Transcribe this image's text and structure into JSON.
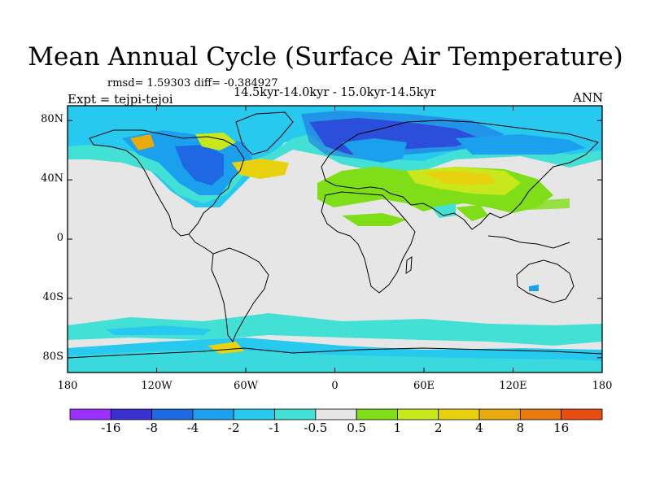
{
  "title": "Mean Annual Cycle (Surface Air Temperature)",
  "stats": "rmsd= 1.59303 diff= -0.384927",
  "subtitle": "14.5kyr-14.0kyr - 15.0kyr-14.5kyr",
  "experiment": "Expt = tejpi-tejoi",
  "season": "ANN",
  "map": {
    "projection": "cylindrical-equidistant",
    "lon_range": [
      -180,
      180
    ],
    "lat_range": [
      -90,
      90
    ],
    "background_color": "#e6e6e6",
    "coastline_color": "#000000"
  },
  "lat_ticks": [
    {
      "value": 80,
      "label": "80N"
    },
    {
      "value": 40,
      "label": "40N"
    },
    {
      "value": 0,
      "label": "0"
    },
    {
      "value": -40,
      "label": "40S"
    },
    {
      "value": -80,
      "label": "80S"
    }
  ],
  "lon_ticks": [
    {
      "value": -180,
      "label": "180"
    },
    {
      "value": -120,
      "label": "120W"
    },
    {
      "value": -60,
      "label": "60W"
    },
    {
      "value": 0,
      "label": "0"
    },
    {
      "value": 60,
      "label": "60E"
    },
    {
      "value": 120,
      "label": "120E"
    },
    {
      "value": 180,
      "label": "180"
    }
  ],
  "colorbar": {
    "colors": [
      "#9b30ff",
      "#3a2fd0",
      "#1f68e3",
      "#1aa0ec",
      "#27c9ee",
      "#43e0d6",
      "#e6e6e6",
      "#80de18",
      "#c8e81c",
      "#e8d210",
      "#e8aa0c",
      "#e87a10",
      "#e84c10"
    ],
    "labels": [
      "-16",
      "-8",
      "-4",
      "-2",
      "-1",
      "-0.5",
      "0.5",
      "1",
      "2",
      "4",
      "8",
      "16"
    ]
  }
}
